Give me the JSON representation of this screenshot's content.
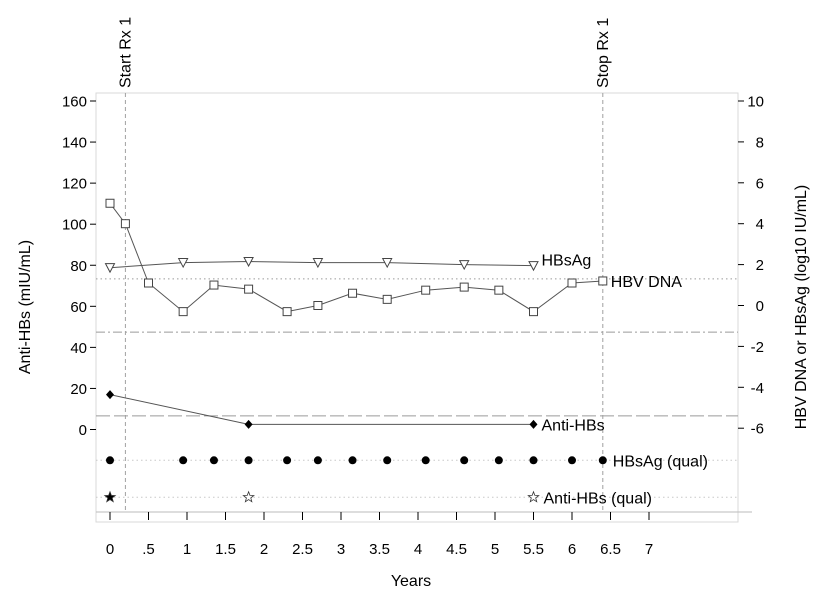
{
  "chart_data": {
    "type": "line",
    "xlabel": "Years",
    "ylabel_left": "Anti-HBs (mIU/mL)",
    "ylabel_right": "HBV DNA or HBsAg (log10 IU/mL)",
    "x_ticks": [
      {
        "value": 0,
        "label": "0"
      },
      {
        "value": 0.5,
        "label": ".5"
      },
      {
        "value": 1,
        "label": "1"
      },
      {
        "value": 1.5,
        "label": "1.5"
      },
      {
        "value": 2,
        "label": "2"
      },
      {
        "value": 2.5,
        "label": "2.5"
      },
      {
        "value": 3,
        "label": "3"
      },
      {
        "value": 3.5,
        "label": "3.5"
      },
      {
        "value": 4,
        "label": "4"
      },
      {
        "value": 4.5,
        "label": "4.5"
      },
      {
        "value": 5,
        "label": "5"
      },
      {
        "value": 5.5,
        "label": "5.5"
      },
      {
        "value": 6,
        "label": "6"
      },
      {
        "value": 6.5,
        "label": "6.5"
      },
      {
        "value": 7,
        "label": "7"
      }
    ],
    "xlim": [
      -0.1,
      8.3
    ],
    "ylim_left": [
      -40,
      164
    ],
    "ylim_right": [
      -11,
      10.4
    ],
    "y_ticks_left": [
      0,
      20,
      40,
      60,
      80,
      100,
      120,
      140,
      160
    ],
    "y_ticks_right": [
      -6,
      -4,
      -2,
      0,
      2,
      4,
      6,
      8,
      10
    ],
    "vertical_markers": [
      {
        "x": 0.2,
        "label": "Start Rx 1"
      },
      {
        "x": 6.4,
        "label": "Stop Rx 1"
      }
    ],
    "reference_lines": [
      {
        "axis": "right",
        "y": 1.3,
        "style": "dotted"
      },
      {
        "axis": "right",
        "y": -1.3,
        "style": "dash-dot"
      },
      {
        "axis": "right",
        "y": -5.4,
        "style": "long-dash"
      }
    ],
    "series": [
      {
        "name": "HBV DNA",
        "axis": "right",
        "marker": "square",
        "points": [
          [
            0,
            5.0
          ],
          [
            0.2,
            4.0
          ],
          [
            0.5,
            1.1
          ],
          [
            0.95,
            -0.3
          ],
          [
            1.35,
            1.0
          ],
          [
            1.8,
            0.8
          ],
          [
            2.3,
            -0.3
          ],
          [
            2.7,
            0.0
          ],
          [
            3.15,
            0.6
          ],
          [
            3.6,
            0.3
          ],
          [
            4.1,
            0.75
          ],
          [
            4.6,
            0.9
          ],
          [
            5.05,
            0.75
          ],
          [
            5.5,
            -0.3
          ],
          [
            6.0,
            1.1
          ],
          [
            6.4,
            1.2
          ]
        ]
      },
      {
        "name": "HBsAg",
        "axis": "right",
        "marker": "triangle-down",
        "points": [
          [
            0,
            1.85
          ],
          [
            0.95,
            2.1
          ],
          [
            1.8,
            2.15
          ],
          [
            2.7,
            2.1
          ],
          [
            3.6,
            2.1
          ],
          [
            4.6,
            2.0
          ],
          [
            5.5,
            1.95
          ]
        ]
      },
      {
        "name": "Anti-HBs",
        "axis": "left",
        "marker": "diamond-filled",
        "points": [
          [
            0,
            17
          ],
          [
            1.8,
            2.5
          ],
          [
            5.5,
            2.5
          ]
        ]
      },
      {
        "name": "HBsAg (qual)",
        "axis": "row",
        "marker": "dot-filled",
        "row_value": -15,
        "x": [
          0,
          0.95,
          1.35,
          1.8,
          2.3,
          2.7,
          3.15,
          3.6,
          4.1,
          4.6,
          5.05,
          5.5,
          6.0,
          6.4
        ]
      },
      {
        "name": "Anti-HBs (qual)",
        "axis": "row",
        "marker": "star",
        "row_value": -33,
        "points": [
          {
            "x": 0,
            "filled": true
          },
          {
            "x": 1.8,
            "filled": false
          },
          {
            "x": 5.5,
            "filled": false
          }
        ]
      }
    ],
    "grid": false,
    "legend": "inline labels at series ends"
  }
}
